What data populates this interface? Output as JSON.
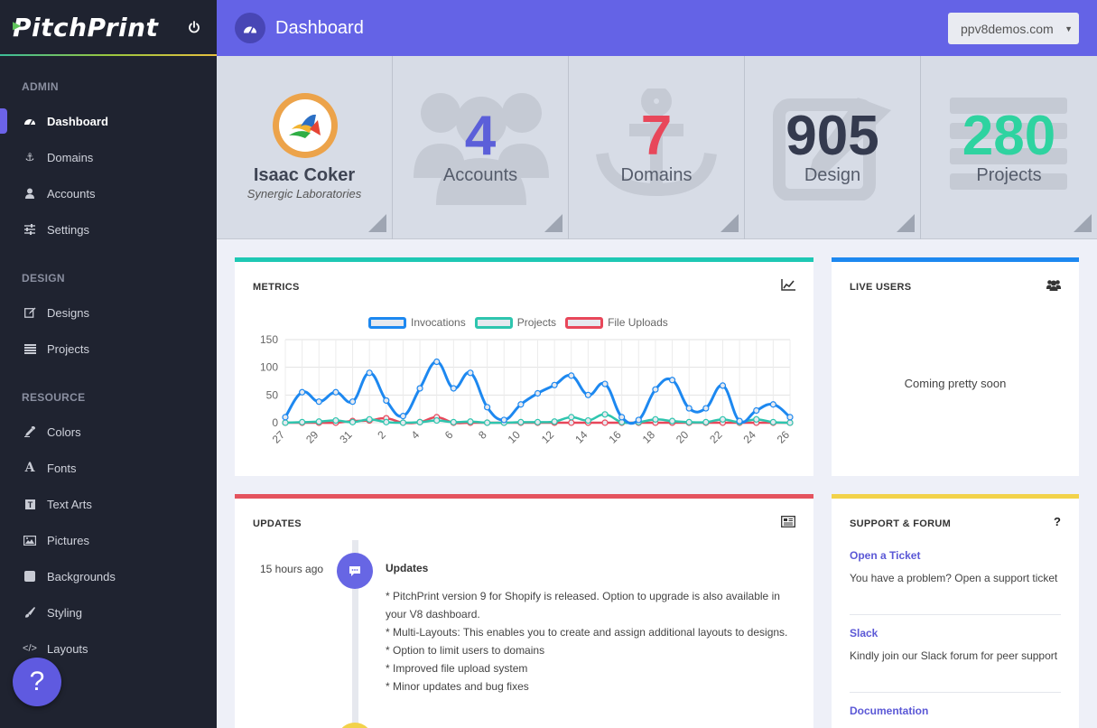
{
  "brand": {
    "name": "PitchPrint"
  },
  "header": {
    "title": "Dashboard",
    "domain_selected": "ppv8demos.com"
  },
  "sidebar": {
    "sections": [
      {
        "title": "ADMIN",
        "items": [
          {
            "label": "Dashboard",
            "icon": "dashboard-icon",
            "active": true
          },
          {
            "label": "Domains",
            "icon": "anchor-icon"
          },
          {
            "label": "Accounts",
            "icon": "user-icon"
          },
          {
            "label": "Settings",
            "icon": "sliders-icon"
          }
        ]
      },
      {
        "title": "DESIGN",
        "items": [
          {
            "label": "Designs",
            "icon": "edit-icon"
          },
          {
            "label": "Projects",
            "icon": "list-icon"
          }
        ]
      },
      {
        "title": "RESOURCE",
        "items": [
          {
            "label": "Colors",
            "icon": "eyedropper-icon"
          },
          {
            "label": "Fonts",
            "icon": "font-icon"
          },
          {
            "label": "Text Arts",
            "icon": "text-art-icon"
          },
          {
            "label": "Pictures",
            "icon": "image-icon"
          },
          {
            "label": "Backgrounds",
            "icon": "square-icon"
          },
          {
            "label": "Styling",
            "icon": "brush-icon"
          },
          {
            "label": "Layouts",
            "icon": "code-icon"
          }
        ]
      }
    ]
  },
  "profile": {
    "name": "Isaac Coker",
    "company": "Synergic Laboratories"
  },
  "stats": [
    {
      "value": "4",
      "label": "Accounts",
      "color": "#5b5fd9"
    },
    {
      "value": "7",
      "label": "Domains",
      "color": "#e8475a"
    },
    {
      "value": "905",
      "label": "Design",
      "color": "#343a4e"
    },
    {
      "value": "280",
      "label": "Projects",
      "color": "#2fd3a0"
    }
  ],
  "metrics": {
    "title": "METRICS"
  },
  "live_users": {
    "title": "LIVE USERS",
    "message": "Coming pretty soon"
  },
  "updates": {
    "title": "UPDATES",
    "time": "15 hours ago",
    "heading": "Updates",
    "lines": [
      "* PitchPrint version 9 for Shopify is released. Option to upgrade is also available in your V8 dashboard.",
      "* Multi-Layouts: This enables you to create and assign additional layouts to designs.",
      "* Option to limit users to domains",
      "* Improved file upload system",
      "* Minor updates and bug fixes"
    ]
  },
  "support": {
    "title": "SUPPORT & FORUM",
    "help_glyph": "?",
    "items": [
      {
        "title": "Open a Ticket",
        "desc": "You have a problem? Open a support ticket"
      },
      {
        "title": "Slack",
        "desc": "Kindly join our Slack forum for peer support"
      },
      {
        "title": "Documentation",
        "desc": ""
      }
    ]
  },
  "help_button": {
    "label": "?"
  },
  "chart_data": {
    "type": "line",
    "x": [
      "27",
      "28",
      "29",
      "30",
      "31",
      "1",
      "2",
      "3",
      "4",
      "5",
      "6",
      "7",
      "8",
      "9",
      "10",
      "11",
      "12",
      "13",
      "14",
      "15",
      "16",
      "17",
      "18",
      "19",
      "20",
      "21",
      "22",
      "23",
      "24",
      "25",
      "26"
    ],
    "x_tick_labels": [
      "27",
      "29",
      "31",
      "2",
      "4",
      "6",
      "8",
      "10",
      "12",
      "14",
      "16",
      "18",
      "20",
      "22",
      "24",
      "26"
    ],
    "ylim": [
      0,
      150
    ],
    "y_ticks": [
      0,
      50,
      100,
      150
    ],
    "grid": true,
    "legend_position": "top",
    "series": [
      {
        "name": "Invocations",
        "color": "#1d88f0",
        "values": [
          10,
          55,
          38,
          55,
          38,
          90,
          40,
          12,
          62,
          110,
          62,
          90,
          28,
          5,
          33,
          53,
          68,
          85,
          50,
          70,
          10,
          5,
          60,
          77,
          26,
          26,
          67,
          3,
          22,
          33,
          10
        ]
      },
      {
        "name": "Projects",
        "color": "#2ec5ae",
        "values": [
          0,
          1,
          2,
          4,
          1,
          6,
          1,
          0,
          1,
          4,
          1,
          2,
          0,
          0,
          1,
          1,
          2,
          10,
          4,
          15,
          1,
          1,
          6,
          3,
          1,
          1,
          6,
          1,
          6,
          1,
          0
        ]
      },
      {
        "name": "File Uploads",
        "color": "#e8475a",
        "values": [
          0,
          0,
          0,
          0,
          3,
          4,
          8,
          0,
          1,
          10,
          0,
          0,
          0,
          0,
          0,
          0,
          0,
          0,
          0,
          0,
          0,
          0,
          0,
          0,
          0,
          0,
          0,
          0,
          0,
          0,
          0
        ]
      }
    ]
  }
}
